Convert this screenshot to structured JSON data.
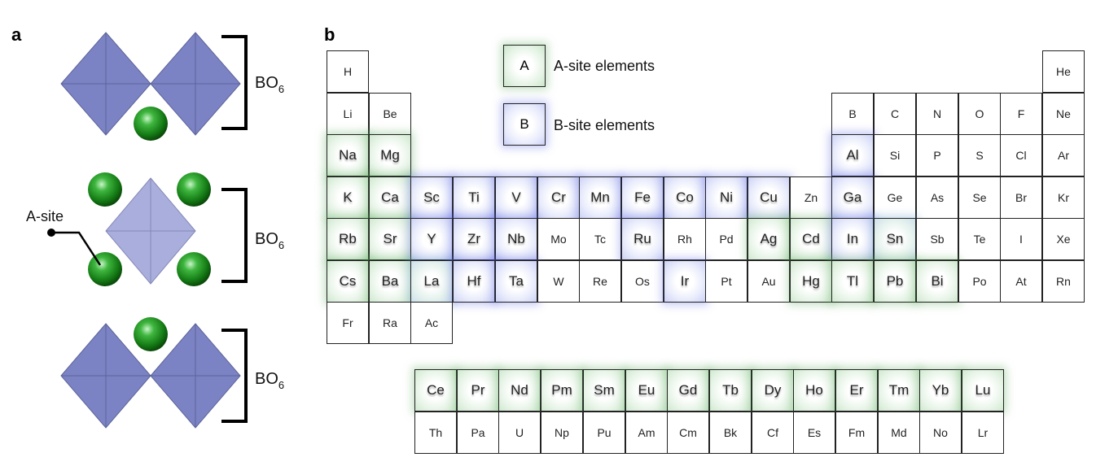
{
  "panel_a": {
    "label": "a",
    "bracket_label": "BO",
    "bracket_subscript": "6",
    "asite_label": "A-site"
  },
  "panel_b": {
    "label": "b",
    "legend": {
      "a_symbol": "A",
      "a_text": "A-site elements",
      "b_symbol": "B",
      "b_text": "B-site elements"
    },
    "colors": {
      "a_site": "#5aaa5a",
      "b_site": "#5a64e6",
      "octahedron": "#7b83c4",
      "sphere": "#1f8a1f"
    },
    "main_table": [
      [
        "H",
        "",
        "",
        "",
        "",
        "",
        "",
        "",
        "",
        "",
        "",
        "",
        "",
        "",
        "",
        "",
        "",
        "He"
      ],
      [
        "Li",
        "Be",
        "",
        "",
        "",
        "",
        "",
        "",
        "",
        "",
        "",
        "",
        "B",
        "C",
        "N",
        "O",
        "F",
        "Ne"
      ],
      [
        "Na",
        "Mg",
        "",
        "",
        "",
        "",
        "",
        "",
        "",
        "",
        "",
        "",
        "Al",
        "Si",
        "P",
        "S",
        "Cl",
        "Ar"
      ],
      [
        "K",
        "Ca",
        "Sc",
        "Ti",
        "V",
        "Cr",
        "Mn",
        "Fe",
        "Co",
        "Ni",
        "Cu",
        "Zn",
        "Ga",
        "Ge",
        "As",
        "Se",
        "Br",
        "Kr"
      ],
      [
        "Rb",
        "Sr",
        "Y",
        "Zr",
        "Nb",
        "Mo",
        "Tc",
        "Ru",
        "Rh",
        "Pd",
        "Ag",
        "Cd",
        "In",
        "Sn",
        "Sb",
        "Te",
        "I",
        "Xe"
      ],
      [
        "Cs",
        "Ba",
        "La",
        "Hf",
        "Ta",
        "W",
        "Re",
        "Os",
        "Ir",
        "Pt",
        "Au",
        "Hg",
        "Tl",
        "Pb",
        "Bi",
        "Po",
        "At",
        "Rn"
      ],
      [
        "Fr",
        "Ra",
        "Ac",
        "",
        "",
        "",
        "",
        "",
        "",
        "",
        "",
        "",
        "",
        "",
        "",
        "",
        "",
        ""
      ]
    ],
    "lanthanides": [
      "Ce",
      "Pr",
      "Nd",
      "Pm",
      "Sm",
      "Eu",
      "Gd",
      "Tb",
      "Dy",
      "Ho",
      "Er",
      "Tm",
      "Yb",
      "Lu"
    ],
    "actinides": [
      "Th",
      "Pa",
      "U",
      "Np",
      "Pu",
      "Am",
      "Cm",
      "Bk",
      "Cf",
      "Es",
      "Fm",
      "Md",
      "No",
      "Lr"
    ],
    "a_site_elements": [
      "Na",
      "Mg",
      "K",
      "Ca",
      "Rb",
      "Sr",
      "Cs",
      "Ba",
      "La",
      "Ag",
      "Cd",
      "Hg",
      "Tl",
      "Pb",
      "Bi",
      "Ce",
      "Pr",
      "Nd",
      "Pm",
      "Sm",
      "Eu",
      "Gd",
      "Tb",
      "Dy",
      "Ho",
      "Er",
      "Tm",
      "Yb",
      "Lu"
    ],
    "b_site_elements": [
      "Sc",
      "Ti",
      "V",
      "Cr",
      "Mn",
      "Fe",
      "Co",
      "Ni",
      "Cu",
      "Al",
      "Ga",
      "In",
      "Sn",
      "Y",
      "Zr",
      "Nb",
      "Ru",
      "Hf",
      "Ta",
      "Ir"
    ],
    "both_elements": [
      "Sn",
      "La"
    ]
  }
}
